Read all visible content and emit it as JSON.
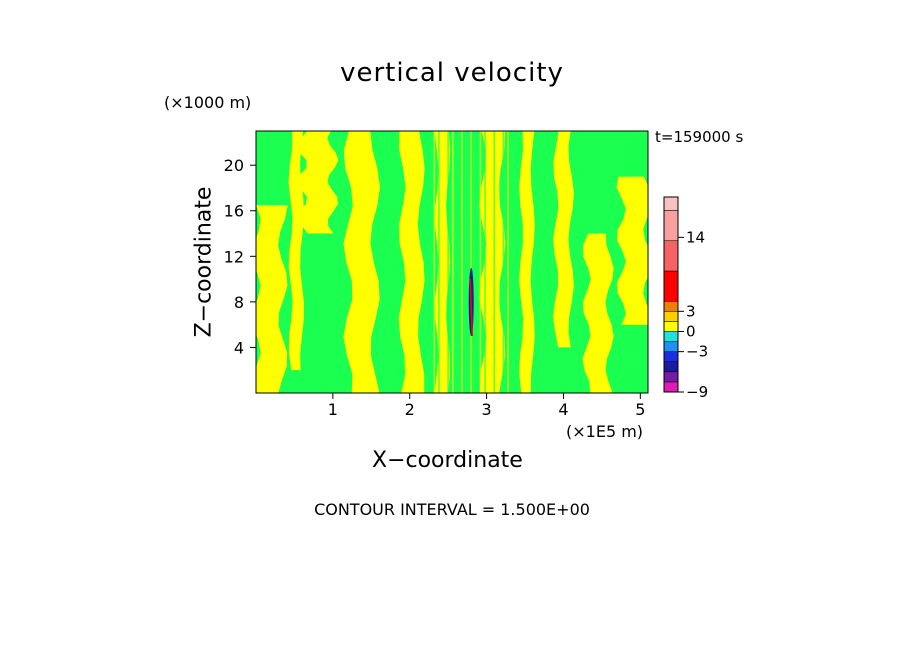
{
  "chart_data": {
    "type": "heatmap",
    "title": "vertical velocity",
    "xlabel": "X−coordinate",
    "ylabel": "Z−coordinate",
    "x_units": "(×1E5 m)",
    "y_units": "(×1000 m)",
    "time_label": "t=159000 s",
    "footer": "CONTOUR INTERVAL = 1.500E+00",
    "xlim": [
      0,
      5.1
    ],
    "ylim": [
      0,
      23
    ],
    "x_ticks": [
      1,
      2,
      3,
      4,
      5
    ],
    "y_ticks": [
      4,
      8,
      12,
      16,
      20
    ],
    "colorbar": {
      "ticks": [
        {
          "value": 14,
          "label": "14"
        },
        {
          "value": 3,
          "label": "3"
        },
        {
          "value": 0,
          "label": "0"
        },
        {
          "value": -3,
          "label": "−3"
        },
        {
          "value": -9,
          "label": "−9"
        }
      ],
      "levels": [
        {
          "from": -9,
          "to": -7.5,
          "color": "#e01ab4"
        },
        {
          "from": -7.5,
          "to": -6,
          "color": "#7a1aa8"
        },
        {
          "from": -6,
          "to": -4.5,
          "color": "#1a1aa0"
        },
        {
          "from": -4.5,
          "to": -3,
          "color": "#1a2ee0"
        },
        {
          "from": -3,
          "to": -1.5,
          "color": "#2090f0"
        },
        {
          "from": -1.5,
          "to": 0,
          "color": "#20e0e0"
        },
        {
          "from": 0,
          "to": 1.5,
          "color": "#ffff00"
        },
        {
          "from": 1.5,
          "to": 3,
          "color": "#ffd000"
        },
        {
          "from": 3,
          "to": 4.5,
          "color": "#f08000"
        },
        {
          "from": 4.5,
          "to": 9,
          "color": "#ff0000"
        },
        {
          "from": 9,
          "to": 13.5,
          "color": "#f46464"
        },
        {
          "from": 13.5,
          "to": 18,
          "color": "#f8a0a0"
        },
        {
          "from": 18,
          "to": 20,
          "color": "#fac0c0"
        }
      ],
      "cmin": -9,
      "cmax": 20
    },
    "field": {
      "background_color": "#1aff50",
      "positive_color": "#ffff00",
      "bands": [
        {
          "x0": 0.0,
          "x1": 0.35,
          "y0": 0,
          "y1": 16.5
        },
        {
          "x0": 0.45,
          "x1": 0.6,
          "y0": 2,
          "y1": 23
        },
        {
          "x0": 0.6,
          "x1": 1.0,
          "y0": 14,
          "y1": 23
        },
        {
          "x0": 1.2,
          "x1": 1.55,
          "y0": 0,
          "y1": 23
        },
        {
          "x0": 1.9,
          "x1": 2.15,
          "y0": 0,
          "y1": 23
        },
        {
          "x0": 2.35,
          "x1": 2.5,
          "y0": 0,
          "y1": 23
        },
        {
          "x0": 2.95,
          "x1": 3.2,
          "y0": 0,
          "y1": 23
        },
        {
          "x0": 3.45,
          "x1": 3.6,
          "y0": 0,
          "y1": 23
        },
        {
          "x0": 3.9,
          "x1": 4.1,
          "y0": 4,
          "y1": 23
        },
        {
          "x0": 4.3,
          "x1": 4.6,
          "y0": 0,
          "y1": 14
        },
        {
          "x0": 4.75,
          "x1": 5.1,
          "y0": 6,
          "y1": 19
        }
      ],
      "anomaly": {
        "x": 2.8,
        "y0": 5,
        "y1": 11,
        "color_neg": "#1a1aa0",
        "color_pos": "#ff0000"
      }
    }
  }
}
